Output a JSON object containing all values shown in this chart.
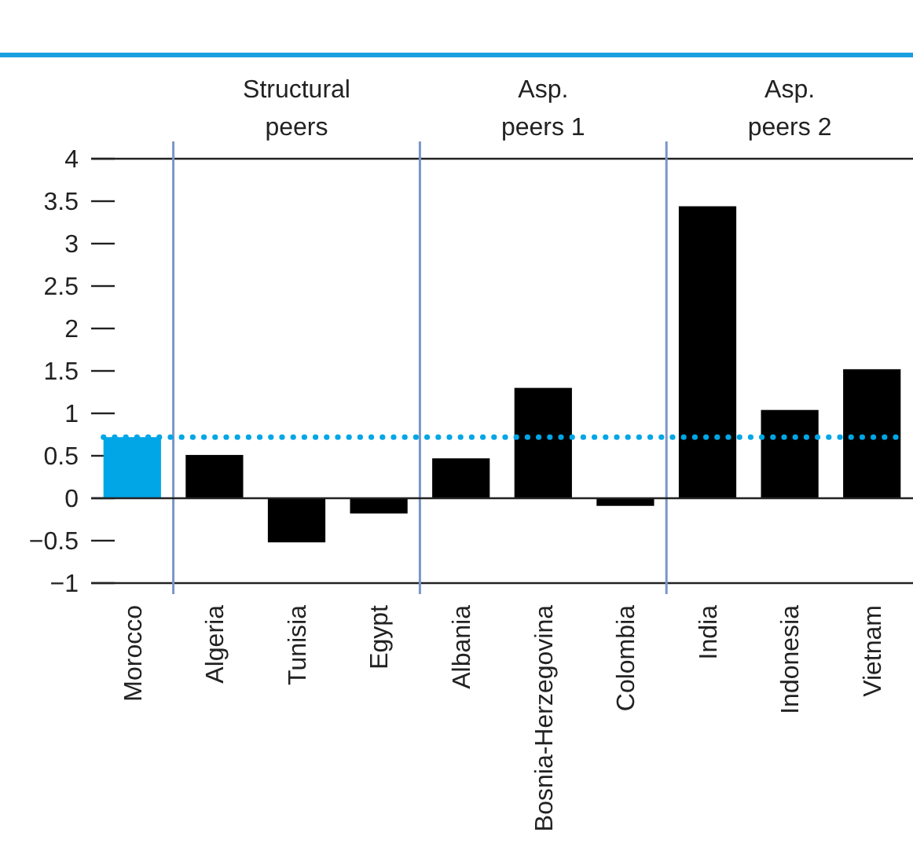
{
  "chart_data": {
    "type": "bar",
    "categories": [
      "Morocco",
      "Algeria",
      "Tunisia",
      "Egypt",
      "Albania",
      "Bosnia-Herzegovina",
      "Colombia",
      "India",
      "Indonesia",
      "Vietnam"
    ],
    "values": [
      0.72,
      0.51,
      -0.52,
      -0.18,
      0.47,
      1.3,
      -0.09,
      3.44,
      1.04,
      1.52
    ],
    "colors": [
      "#00a6e6",
      "#000000",
      "#000000",
      "#000000",
      "#000000",
      "#000000",
      "#000000",
      "#000000",
      "#000000",
      "#000000"
    ],
    "ylim": [
      -1,
      4
    ],
    "yticks": [
      {
        "value": -1,
        "label": "−1"
      },
      {
        "value": -0.5,
        "label": "−0.5"
      },
      0,
      0.5,
      1,
      1.5,
      2,
      2.5,
      3,
      3.5,
      4
    ],
    "grid": false,
    "ref_lines": [
      {
        "axis": "y",
        "value": 0.72,
        "color": "#00a6e6",
        "line_style": "dotted"
      }
    ],
    "annotations": [
      "Structural peers",
      "Asp. peers 1",
      "Asp. peers 2"
    ]
  }
}
